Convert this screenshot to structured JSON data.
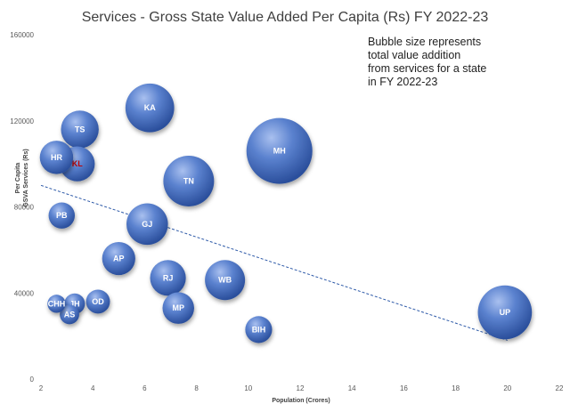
{
  "chart_data": {
    "type": "bubble",
    "title": "Services - Gross State Value Added Per Capita (Rs) FY 2022-23",
    "xlabel": "Population (Crores)",
    "ylabel_lines": [
      "Per Capita",
      "GSVA Services (Rs)"
    ],
    "xlim": [
      2,
      22
    ],
    "ylim": [
      0,
      160000
    ],
    "x_ticks": [
      "2",
      "4",
      "6",
      "8",
      "10",
      "12",
      "14",
      "16",
      "18",
      "20",
      "22"
    ],
    "y_ticks": [
      "0",
      "40000",
      "80000",
      "120000",
      "160000"
    ],
    "annotation_lines": [
      "Bubble size represents",
      "total value addition",
      "from services for a state",
      "in FY 2022-23"
    ],
    "trendline": {
      "x": [
        2,
        20
      ],
      "y": [
        90000,
        18000
      ]
    },
    "colors": {
      "bubble": "#4a70c0",
      "label": "#ffffff",
      "highlight_label": "#c00000",
      "trendline": "#2e5aa8"
    },
    "points": [
      {
        "label": "KA",
        "x": 6.2,
        "y": 126000,
        "size": 14.5,
        "highlight": false
      },
      {
        "label": "TS",
        "x": 3.5,
        "y": 116000,
        "size": 8.7,
        "highlight": false
      },
      {
        "label": "HR",
        "x": 2.6,
        "y": 103000,
        "size": 6.8,
        "highlight": false
      },
      {
        "label": "KL",
        "x": 3.4,
        "y": 100000,
        "size": 7.5,
        "highlight": true
      },
      {
        "label": "MH",
        "x": 11.2,
        "y": 106000,
        "size": 26.5,
        "highlight": false
      },
      {
        "label": "TN",
        "x": 7.7,
        "y": 92000,
        "size": 15.7,
        "highlight": false
      },
      {
        "label": "PB",
        "x": 2.8,
        "y": 76000,
        "size": 4.2,
        "highlight": false
      },
      {
        "label": "GJ",
        "x": 6.1,
        "y": 72000,
        "size": 10.5,
        "highlight": false
      },
      {
        "label": "AP",
        "x": 5.0,
        "y": 56000,
        "size": 6.7,
        "highlight": false
      },
      {
        "label": "RJ",
        "x": 6.9,
        "y": 47000,
        "size": 7.8,
        "highlight": false
      },
      {
        "label": "WB",
        "x": 9.1,
        "y": 46000,
        "size": 9.8,
        "highlight": false
      },
      {
        "label": "OD",
        "x": 4.2,
        "y": 36000,
        "size": 3.5,
        "highlight": false
      },
      {
        "label": "CHH",
        "x": 2.6,
        "y": 35000,
        "size": 2.0,
        "highlight": false
      },
      {
        "label": "JH",
        "x": 3.3,
        "y": 35000,
        "size": 2.6,
        "highlight": false
      },
      {
        "label": "AS",
        "x": 3.1,
        "y": 30000,
        "size": 2.3,
        "highlight": false
      },
      {
        "label": "MP",
        "x": 7.3,
        "y": 33000,
        "size": 6.1,
        "highlight": false
      },
      {
        "label": "BIH",
        "x": 10.4,
        "y": 23000,
        "size": 4.4,
        "highlight": false
      },
      {
        "label": "UP",
        "x": 19.9,
        "y": 31000,
        "size": 17.8,
        "highlight": false
      }
    ]
  }
}
